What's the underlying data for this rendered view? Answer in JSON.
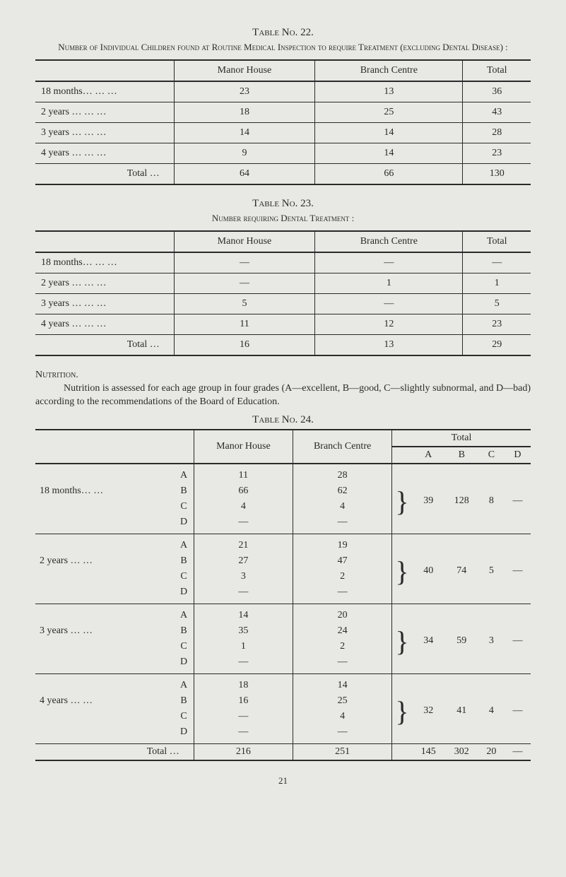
{
  "table22": {
    "title": "Table No. 22.",
    "subtitle": "Number of Individual Children found at Routine Medical Inspection to require Treatment (excluding Dental Disease) :",
    "headers": [
      "",
      "Manor House",
      "Branch Centre",
      "Total"
    ],
    "rows": [
      {
        "label": "18 months…  …  …",
        "manor": "23",
        "branch": "13",
        "total": "36"
      },
      {
        "label": "2 years  …  …  …",
        "manor": "18",
        "branch": "25",
        "total": "43"
      },
      {
        "label": "3 years  …  …  …",
        "manor": "14",
        "branch": "14",
        "total": "28"
      },
      {
        "label": "4 years  …  …  …",
        "manor": "9",
        "branch": "14",
        "total": "23"
      }
    ],
    "totalRow": {
      "label": "Total …",
      "manor": "64",
      "branch": "66",
      "total": "130"
    }
  },
  "table23": {
    "title": "Table No. 23.",
    "subtitle": "Number requiring Dental Treatment :",
    "headers": [
      "",
      "Manor House",
      "Branch Centre",
      "Total"
    ],
    "rows": [
      {
        "label": "18 months…  …  …",
        "manor": "—",
        "branch": "—",
        "total": "—"
      },
      {
        "label": "2 years  …  …  …",
        "manor": "—",
        "branch": "1",
        "total": "1"
      },
      {
        "label": "3 years  …  …  …",
        "manor": "5",
        "branch": "—",
        "total": "5"
      },
      {
        "label": "4 years  …  …  …",
        "manor": "11",
        "branch": "12",
        "total": "23"
      }
    ],
    "totalRow": {
      "label": "Total …",
      "manor": "16",
      "branch": "13",
      "total": "29"
    }
  },
  "nutrition": {
    "heading": "Nutrition.",
    "paragraph": "Nutrition is assessed for each age group in four grades (A—excellent, B—good, C—slightly subnormal, and D—bad) according to the recommendations of the Board of Education."
  },
  "table24": {
    "title": "Table No. 24.",
    "headers": {
      "manor": "Manor House",
      "branch": "Branch Centre",
      "total": "Total",
      "a": "A",
      "b": "B",
      "c": "C",
      "d": "D"
    },
    "groups": [
      {
        "label": "18 months…  …",
        "rows": [
          {
            "g": "A",
            "m": "11",
            "b": "28"
          },
          {
            "g": "B",
            "m": "66",
            "b": "62"
          },
          {
            "g": "C",
            "m": "4",
            "b": "4"
          },
          {
            "g": "D",
            "m": "—",
            "b": "—"
          }
        ],
        "tot": {
          "a": "39",
          "b": "128",
          "c": "8",
          "d": "—"
        }
      },
      {
        "label": "2 years  …  …",
        "rows": [
          {
            "g": "A",
            "m": "21",
            "b": "19"
          },
          {
            "g": "B",
            "m": "27",
            "b": "47"
          },
          {
            "g": "C",
            "m": "3",
            "b": "2"
          },
          {
            "g": "D",
            "m": "—",
            "b": "—"
          }
        ],
        "tot": {
          "a": "40",
          "b": "74",
          "c": "5",
          "d": "—"
        }
      },
      {
        "label": "3 years  …  …",
        "rows": [
          {
            "g": "A",
            "m": "14",
            "b": "20"
          },
          {
            "g": "B",
            "m": "35",
            "b": "24"
          },
          {
            "g": "C",
            "m": "1",
            "b": "2"
          },
          {
            "g": "D",
            "m": "—",
            "b": "—"
          }
        ],
        "tot": {
          "a": "34",
          "b": "59",
          "c": "3",
          "d": "—"
        }
      },
      {
        "label": "4 years  …  …",
        "rows": [
          {
            "g": "A",
            "m": "18",
            "b": "14"
          },
          {
            "g": "B",
            "m": "16",
            "b": "25"
          },
          {
            "g": "C",
            "m": "—",
            "b": "4"
          },
          {
            "g": "D",
            "m": "—",
            "b": "—"
          }
        ],
        "tot": {
          "a": "32",
          "b": "41",
          "c": "4",
          "d": "—"
        }
      }
    ],
    "totalRow": {
      "label": "Total …",
      "manor": "216",
      "branch": "251",
      "a": "145",
      "b": "302",
      "c": "20",
      "d": "—"
    }
  },
  "pageNumber": "21"
}
